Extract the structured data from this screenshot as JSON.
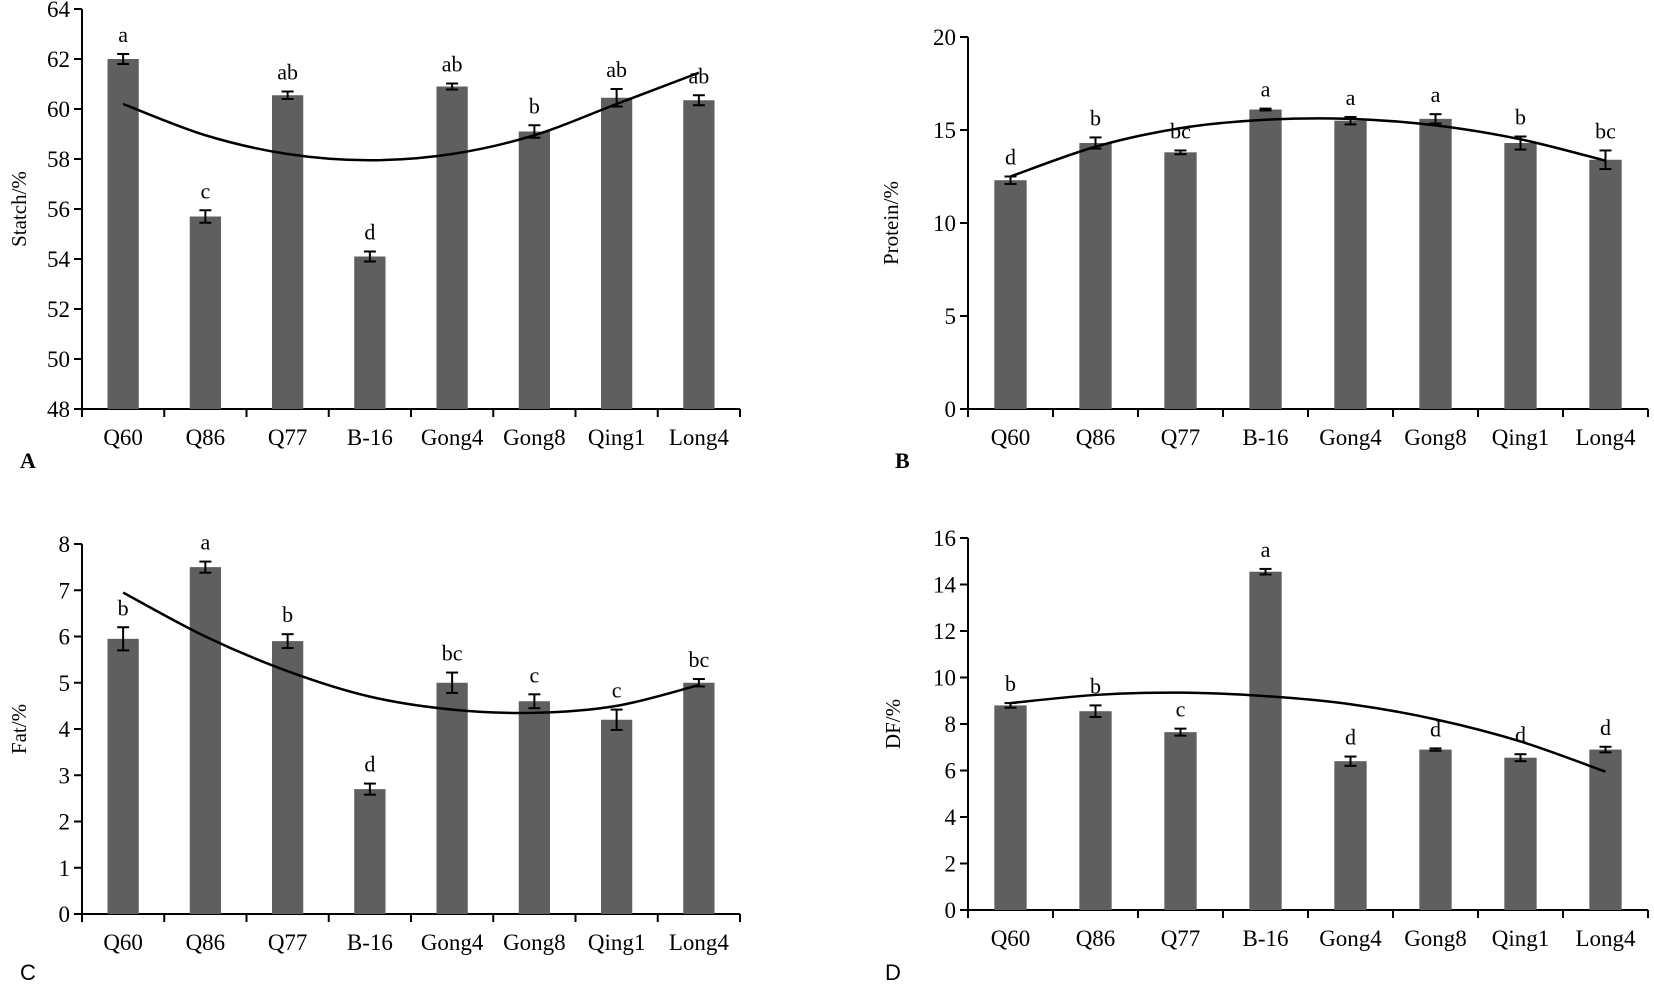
{
  "colors": {
    "bar": "#5f5f5f",
    "axis": "#000000",
    "trend": "#000000"
  },
  "chart_data": [
    {
      "type": "bar",
      "panel_label": "A",
      "title": "",
      "xlabel": "",
      "ylabel": "Statch/%",
      "ylim": [
        48,
        64
      ],
      "yticks": [
        48,
        50,
        52,
        54,
        56,
        58,
        60,
        62,
        64
      ],
      "categories": [
        "Q60",
        "Q86",
        "Q77",
        "B-16",
        "Gong4",
        "Gong8",
        "Qing1",
        "Long4"
      ],
      "values": [
        62.0,
        55.7,
        60.55,
        54.1,
        60.9,
        59.1,
        60.45,
        60.35
      ],
      "errors": [
        0.2,
        0.25,
        0.15,
        0.2,
        0.12,
        0.25,
        0.35,
        0.2
      ],
      "significance": [
        "a",
        "c",
        "ab",
        "d",
        "ab",
        "b",
        "ab",
        "ab"
      ],
      "trendline": {
        "type": "polynomial",
        "values": [
          60.2,
          58.95,
          58.2,
          57.95,
          58.2,
          58.95,
          60.2,
          61.45
        ]
      }
    },
    {
      "type": "bar",
      "panel_label": "B",
      "title": "",
      "xlabel": "",
      "ylabel": "Protein/%",
      "ylim": [
        0,
        20
      ],
      "yticks": [
        0,
        5,
        10,
        15,
        20
      ],
      "categories": [
        "Q60",
        "Q86",
        "Q77",
        "B-16",
        "Gong4",
        "Gong8",
        "Qing1",
        "Long4"
      ],
      "values": [
        12.3,
        14.3,
        13.8,
        16.1,
        15.5,
        15.6,
        14.3,
        13.4
      ],
      "errors": [
        0.2,
        0.3,
        0.1,
        0.05,
        0.2,
        0.25,
        0.35,
        0.5
      ],
      "significance": [
        "d",
        "b",
        "bc",
        "a",
        "a",
        "a",
        "b",
        "bc"
      ],
      "trendline": {
        "type": "polynomial",
        "values": [
          12.5,
          14.1,
          15.1,
          15.55,
          15.6,
          15.25,
          14.5,
          13.35
        ]
      }
    },
    {
      "type": "bar",
      "panel_label": "C",
      "title": "",
      "xlabel": "",
      "ylabel": "Fat/%",
      "ylim": [
        0,
        8
      ],
      "yticks": [
        0,
        1,
        2,
        3,
        4,
        5,
        6,
        7,
        8
      ],
      "categories": [
        "Q60",
        "Q86",
        "Q77",
        "B-16",
        "Gong4",
        "Gong8",
        "Qing1",
        "Long4"
      ],
      "values": [
        5.95,
        7.5,
        5.9,
        2.7,
        5.0,
        4.6,
        4.2,
        5.0
      ],
      "errors": [
        0.25,
        0.12,
        0.15,
        0.12,
        0.22,
        0.15,
        0.22,
        0.08
      ],
      "significance": [
        "b",
        "a",
        "b",
        "d",
        "bc",
        "c",
        "c",
        "bc"
      ],
      "trendline": {
        "type": "polynomial",
        "values": [
          6.95,
          6.0,
          5.25,
          4.7,
          4.42,
          4.35,
          4.5,
          4.95
        ]
      }
    },
    {
      "type": "bar",
      "panel_label": "D",
      "title": "",
      "xlabel": "",
      "ylabel": "DF/%",
      "ylim": [
        0,
        16
      ],
      "yticks": [
        0,
        2,
        4,
        6,
        8,
        10,
        12,
        14,
        16
      ],
      "categories": [
        "Q60",
        "Q86",
        "Q77",
        "B-16",
        "Gong4",
        "Gong8",
        "Qing1",
        "Long4"
      ],
      "values": [
        8.8,
        8.55,
        7.65,
        14.55,
        6.4,
        6.9,
        6.55,
        6.9
      ],
      "errors": [
        0.1,
        0.25,
        0.15,
        0.12,
        0.2,
        0.05,
        0.15,
        0.12
      ],
      "significance": [
        "b",
        "b",
        "c",
        "a",
        "d",
        "d",
        "d",
        "d"
      ],
      "trendline": {
        "type": "polynomial",
        "values": [
          8.9,
          9.25,
          9.35,
          9.2,
          8.85,
          8.2,
          7.25,
          5.95
        ]
      }
    }
  ]
}
